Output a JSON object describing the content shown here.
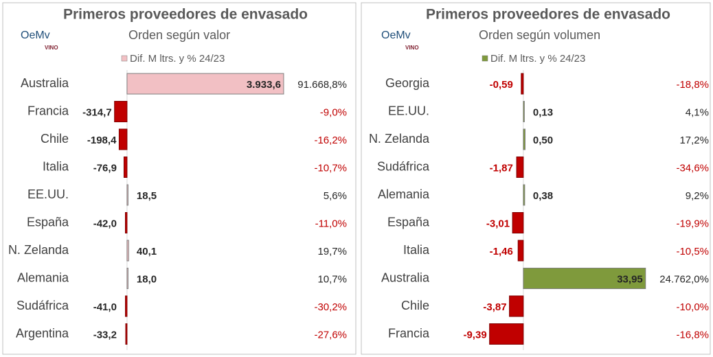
{
  "chart_data": [
    {
      "type": "bar",
      "orientation": "horizontal",
      "title": "Primeros proveedores de envasado",
      "subtitle": "Orden según valor",
      "logo": {
        "text": "OeMv",
        "sub": "VINO"
      },
      "categories": [
        "Australia",
        "Francia",
        "Chile",
        "Italia",
        "EE.UU.",
        "España",
        "N. Zelanda",
        "Alemania",
        "Sudáfrica",
        "Argentina"
      ],
      "xlim": [
        -430,
        4400
      ],
      "series": [
        {
          "name": "Dif. M ltrs. y % 24/23",
          "color": "#f2c0c4",
          "negative_color": "#c00000",
          "values": [
            3933.6,
            -314.7,
            -198.4,
            -76.9,
            18.5,
            -42.0,
            40.1,
            18.0,
            -41.0,
            -33.2
          ],
          "value_labels": [
            "3.933,6",
            "-314,7",
            "-198,4",
            "-76,9",
            "18,5",
            "-42,0",
            "40,1",
            "18,0",
            "-41,0",
            "-33,2"
          ],
          "value_label_negative_color": "#262626",
          "pct_values": [
            91668.8,
            -9.0,
            -16.2,
            -10.7,
            5.6,
            -11.0,
            19.7,
            10.7,
            -30.2,
            -27.6
          ],
          "pct_labels": [
            "91.668,8%",
            "-9,0%",
            "-16,2%",
            "-10,7%",
            "5,6%",
            "-11,0%",
            "19,7%",
            "10,7%",
            "-30,2%",
            "-27,6%"
          ]
        }
      ]
    },
    {
      "type": "bar",
      "orientation": "horizontal",
      "title": "Primeros proveedores de envasado",
      "subtitle": "Orden  según volumen",
      "logo": {
        "text": "OeMv",
        "sub": "VINO"
      },
      "categories": [
        "Georgia",
        "EE.UU.",
        "N. Zelanda",
        "Sudáfrica",
        "Alemania",
        "España",
        "Italia",
        "Australia",
        "Chile",
        "Francia"
      ],
      "xlim": [
        -12,
        38
      ],
      "series": [
        {
          "name": "Dif. M ltrs. y % 24/23",
          "color": "#7f9a3c",
          "negative_color": "#c00000",
          "values": [
            -0.59,
            0.13,
            0.5,
            -1.87,
            0.38,
            -3.01,
            -1.46,
            33.95,
            -3.87,
            -9.39
          ],
          "value_labels": [
            "-0,59",
            "0,13",
            "0,50",
            "-1,87",
            "0,38",
            "-3,01",
            "-1,46",
            "33,95",
            "-3,87",
            "-9,39"
          ],
          "value_label_negative_color": "#c00000",
          "pct_values": [
            -18.8,
            4.1,
            17.2,
            -34.6,
            9.2,
            -19.9,
            -10.5,
            24762.0,
            -10.0,
            -16.8
          ],
          "pct_labels": [
            "-18,8%",
            "4,1%",
            "17,2%",
            "-34,6%",
            "9,2%",
            "-19,9%",
            "-10,5%",
            "24.762,0%",
            "-10,0%",
            "-16,8%"
          ]
        }
      ]
    }
  ]
}
